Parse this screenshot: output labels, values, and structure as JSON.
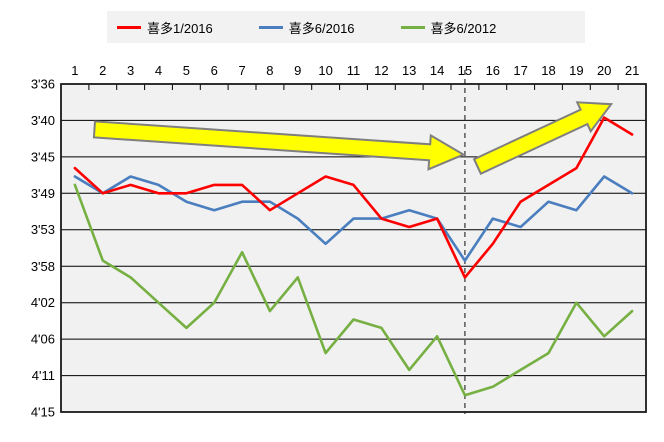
{
  "legend": {
    "items": [
      {
        "label": "喜多1/2016",
        "color": "#FF0000"
      },
      {
        "label": "喜多6/2016",
        "color": "#4A7EBF"
      },
      {
        "label": "喜多6/2012",
        "color": "#76B043"
      }
    ]
  },
  "colors": {
    "plot_background": "#F1F1F1",
    "legend_background": "#F2F2F2",
    "gridline": "#000000",
    "plot_border": "#1a1a1a",
    "axis_text": "#000000",
    "dashed_marker": "#595959",
    "arrow_fill": "#FFFF00",
    "arrow_border": "#7F7F7F"
  },
  "chart_data": {
    "type": "line",
    "title": "",
    "x_axis": {
      "position": "top",
      "labels": [
        "1",
        "2",
        "3",
        "4",
        "5",
        "6",
        "7",
        "8",
        "9",
        "10",
        "11",
        "12",
        "13",
        "14",
        "15",
        "16",
        "17",
        "18",
        "19",
        "20",
        "21"
      ]
    },
    "y_axis": {
      "position": "left",
      "unit": "pace time (minutes'seconds), slower toward bottom",
      "tick_labels": [
        "3'36",
        "3'40",
        "3'45",
        "3'49",
        "3'53",
        "3'58",
        "4'02",
        "4'06",
        "4'11",
        "4'15"
      ],
      "tick_seconds": [
        216,
        220.33,
        224.67,
        229,
        233.33,
        237.67,
        242,
        246.33,
        250.67,
        255
      ],
      "range_seconds": [
        216,
        255
      ]
    },
    "series": [
      {
        "name": "喜多1/2016",
        "color": "#FF0000",
        "values_seconds": [
          226,
          229,
          228,
          229,
          229,
          228,
          228,
          231,
          229,
          227,
          228,
          232,
          233,
          232,
          239,
          235,
          230,
          228,
          226,
          220,
          222
        ]
      },
      {
        "name": "喜多6/2016",
        "color": "#4A7EBF",
        "values_seconds": [
          227,
          229,
          227,
          228,
          230,
          231,
          230,
          230,
          232,
          235,
          232,
          232,
          231,
          232,
          237,
          232,
          233,
          230,
          231,
          227,
          229
        ]
      },
      {
        "name": "喜多6/2012",
        "color": "#76B043",
        "values_seconds": [
          228,
          237,
          239,
          242,
          245,
          242,
          236,
          243,
          239,
          248,
          244,
          245,
          250,
          246,
          253,
          252,
          250,
          248,
          242,
          246,
          243
        ]
      }
    ],
    "annotations": {
      "dashed_vline_at_x": 15,
      "arrows": [
        {
          "name": "flat-decline-arrow",
          "from": {
            "x": 1.7,
            "sec": 221.4
          },
          "to": {
            "x": 14.95,
            "sec": 224.4
          },
          "shaft_half": 8,
          "head_half": 17,
          "head_len": 34
        },
        {
          "name": "improvement-arrow",
          "from": {
            "x": 15.45,
            "sec": 225.8
          },
          "to": {
            "x": 20.25,
            "sec": 218.4
          },
          "shaft_half": 8,
          "head_half": 16,
          "head_len": 30
        }
      ]
    }
  }
}
